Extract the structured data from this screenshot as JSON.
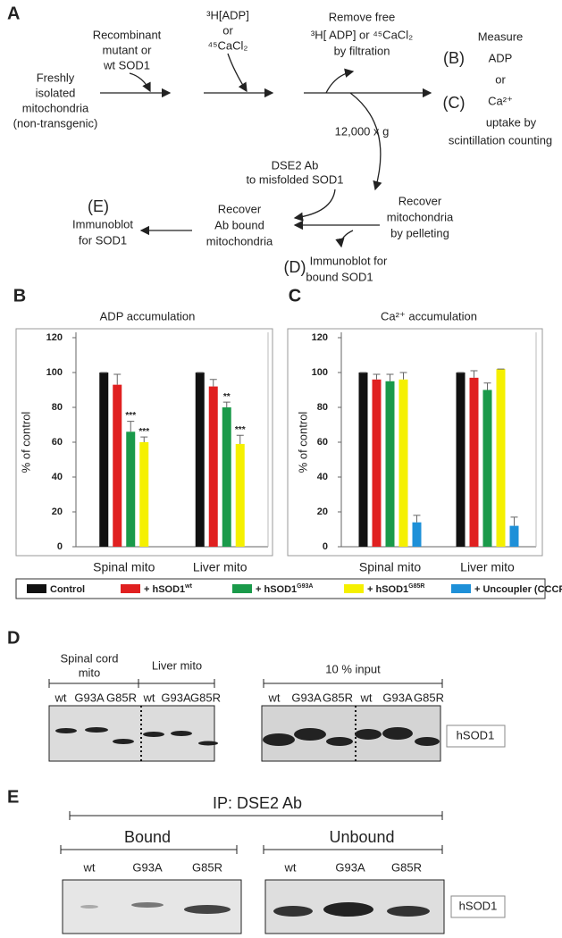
{
  "panel_a": {
    "label": "A",
    "recombinant": [
      "Recombinant",
      "mutant or",
      "wt SOD1"
    ],
    "mito": [
      "Freshly",
      "isolated",
      "mitochondria",
      "(non-transgenic)"
    ],
    "reagent": [
      "³H[ADP]",
      "or",
      "⁴⁵CaCl₂"
    ],
    "remove": [
      "Remove free",
      "³H[ ADP] or ⁴⁵CaCl₂",
      "by filtration"
    ],
    "measure_b": "(B)",
    "measure_c": "(C)",
    "measure": [
      "Measure",
      "ADP",
      "or",
      "Ca²⁺",
      "uptake by",
      "scintillation counting"
    ],
    "spin": "12,000 x g",
    "dse2": [
      "DSE2 Ab",
      "to misfolded SOD1"
    ],
    "pellet": [
      "Recover",
      "mitochondria",
      "by pelleting"
    ],
    "ab_bound": [
      "Recover",
      "Ab bound",
      "mitochondria"
    ],
    "e_label": "(E)",
    "e_text": [
      "Immunoblot",
      "for  SOD1"
    ],
    "d_label": "(D)",
    "d_text": [
      "Immunoblot for",
      "bound SOD1"
    ]
  },
  "chart_data": [
    {
      "type": "bar",
      "panel": "B",
      "title": "ADP accumulation",
      "y_label": "% of control",
      "categories": [
        "Spinal mito",
        "Liver mito"
      ],
      "ylim": [
        0,
        120
      ],
      "yticks": [
        0,
        20,
        40,
        60,
        80,
        100,
        120
      ],
      "series": [
        {
          "color": "#111111",
          "values": [
            100,
            100
          ],
          "errors": [
            0,
            0
          ],
          "annotations": [
            null,
            null
          ]
        },
        {
          "color": "#e02020",
          "values": [
            93,
            92
          ],
          "errors": [
            6,
            4
          ],
          "annotations": [
            null,
            null
          ]
        },
        {
          "color": "#1a9a4a",
          "values": [
            66,
            80
          ],
          "errors": [
            6,
            3
          ],
          "annotations": [
            "***",
            "**"
          ]
        },
        {
          "color": "#f5f000",
          "values": [
            60,
            59
          ],
          "errors": [
            3,
            5
          ],
          "annotations": [
            "***",
            "***"
          ]
        }
      ]
    },
    {
      "type": "bar",
      "panel": "C",
      "title": "Ca²⁺ accumulation",
      "y_label": "% of control",
      "categories": [
        "Spinal mito",
        "Liver mito"
      ],
      "ylim": [
        0,
        120
      ],
      "yticks": [
        0,
        20,
        40,
        60,
        80,
        100,
        120
      ],
      "series": [
        {
          "name": "Control",
          "name_sup": null,
          "color": "#111111",
          "values": [
            100,
            100
          ],
          "errors": [
            0,
            0
          ],
          "annotations": [
            null,
            null
          ]
        },
        {
          "name": "+ hSOD1",
          "name_sup": "wt",
          "color": "#e02020",
          "values": [
            96,
            97
          ],
          "errors": [
            3,
            4
          ],
          "annotations": [
            null,
            null
          ]
        },
        {
          "name": "+ hSOD1",
          "name_sup": "G93A",
          "color": "#1a9a4a",
          "values": [
            95,
            90
          ],
          "errors": [
            4,
            4
          ],
          "annotations": [
            null,
            null
          ]
        },
        {
          "name": "+ hSOD1",
          "name_sup": "G85R",
          "color": "#f5f000",
          "values": [
            96,
            102
          ],
          "errors": [
            4,
            0
          ],
          "annotations": [
            null,
            null
          ]
        },
        {
          "name": "+ Uncoupler (CCCP)",
          "name_sup": null,
          "color": "#1e90d8",
          "values": [
            14,
            12
          ],
          "errors": [
            4,
            5
          ],
          "annotations": [
            null,
            null
          ]
        }
      ]
    }
  ],
  "panel_d": {
    "label": "D",
    "groups": [
      "Spinal cord",
      "mito",
      "Liver mito",
      "10 % input"
    ],
    "lanes": [
      "wt",
      "G93A",
      "G85R",
      "wt",
      "G93A",
      "G85R",
      "wt",
      "G93A",
      "G85R",
      "wt",
      "G93A",
      "G85R"
    ],
    "marker": "hSOD1"
  },
  "panel_e": {
    "label": "E",
    "ip": "IP: DSE2 Ab",
    "groups": [
      "Bound",
      "Unbound"
    ],
    "lanes": [
      "wt",
      "G93A",
      "G85R",
      "wt",
      "G93A",
      "G85R"
    ],
    "marker": "hSOD1"
  }
}
